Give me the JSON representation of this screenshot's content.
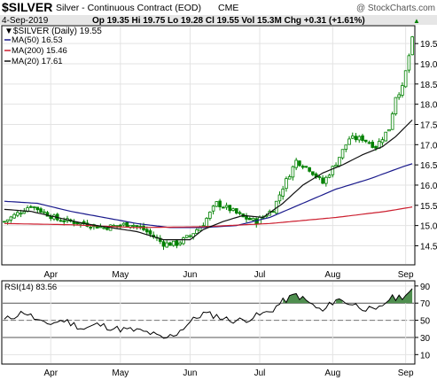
{
  "header": {
    "symbol": "$SILVER",
    "description": "Silver - Continuous Contract (EOD)",
    "exchange": "CME",
    "watermark": "@ StockCharts.com",
    "date": "4-Sep-2019",
    "quote_line": "Op 19.35  Hi 19.75  Lo 19.28  Cl 19.55  Vol 15.3M  Chg +0.31 (+1.61%)",
    "quote_arrow": "▲"
  },
  "legend": {
    "price": "▼$SILVER (Daily) 19.55",
    "ma50": "MA(50) 16.53",
    "ma200": "MA(200) 15.46",
    "ma20": "MA(20) 17.61"
  },
  "rsi_panel": {
    "label": "RSI(14) 83.56"
  },
  "colors": {
    "candle": "#008000",
    "ma50": "#1a1a8c",
    "ma200": "#cc1f2f",
    "ma20": "#111111",
    "rsi_fill_over": "#4f8f4f",
    "rsi_line": "#000000",
    "grid": "#e3e3e3",
    "border": "#000000",
    "header_bg": "#e6e6e6"
  },
  "chart_data": [
    {
      "type": "candlestick",
      "title": "$SILVER Silver - Continuous Contract (EOD) CME",
      "x_tick_labels": [
        "Apr",
        "May",
        "Jun",
        "Jul",
        "Aug",
        "Sep"
      ],
      "y_ticks": [
        14.5,
        15.0,
        15.5,
        16.0,
        16.5,
        17.0,
        17.5,
        18.0,
        18.5,
        19.0,
        19.5
      ],
      "y_tick_labels": [
        "14.5",
        "15.0",
        "15.5",
        "16.0",
        "16.5",
        "17.0",
        "17.5",
        "18.0",
        "18.5",
        "19.0",
        "19.5"
      ],
      "ylim": [
        14.05,
        19.92
      ],
      "close_path": [
        [
          0,
          15.1
        ],
        [
          8,
          15.5
        ],
        [
          16,
          15.15
        ],
        [
          24,
          15.05
        ],
        [
          30,
          14.95
        ],
        [
          38,
          15.05
        ],
        [
          42,
          14.9
        ],
        [
          48,
          14.55
        ],
        [
          52,
          14.55
        ],
        [
          56,
          14.75
        ],
        [
          60,
          15.05
        ],
        [
          64,
          15.55
        ],
        [
          68,
          15.4
        ],
        [
          72,
          15.2
        ],
        [
          76,
          15.1
        ],
        [
          81,
          15.4
        ],
        [
          84,
          15.95
        ],
        [
          88,
          16.6
        ],
        [
          92,
          16.4
        ],
        [
          96,
          16.05
        ],
        [
          100,
          16.55
        ],
        [
          104,
          17.15
        ],
        [
          108,
          17.15
        ],
        [
          112,
          16.95
        ],
        [
          116,
          17.4
        ],
        [
          118,
          18.2
        ],
        [
          120,
          18.4
        ],
        [
          123,
          19.6
        ]
      ],
      "series": [
        {
          "name": "MA(50)",
          "values": [
            [
              0,
              15.6
            ],
            [
              10,
              15.55
            ],
            [
              20,
              15.35
            ],
            [
              30,
              15.2
            ],
            [
              40,
              15.05
            ],
            [
              50,
              14.95
            ],
            [
              60,
              14.95
            ],
            [
              70,
              15.0
            ],
            [
              80,
              15.2
            ],
            [
              90,
              15.55
            ],
            [
              100,
              15.9
            ],
            [
              110,
              16.15
            ],
            [
              120,
              16.45
            ],
            [
              123,
              16.53
            ]
          ]
        },
        {
          "name": "MA(200)",
          "values": [
            [
              0,
              15.05
            ],
            [
              20,
              15.02
            ],
            [
              40,
              14.95
            ],
            [
              60,
              14.97
            ],
            [
              80,
              15.05
            ],
            [
              100,
              15.2
            ],
            [
              115,
              15.35
            ],
            [
              123,
              15.46
            ]
          ]
        },
        {
          "name": "MA(20)",
          "values": [
            [
              0,
              15.4
            ],
            [
              8,
              15.35
            ],
            [
              16,
              15.2
            ],
            [
              24,
              15.05
            ],
            [
              32,
              14.95
            ],
            [
              40,
              14.85
            ],
            [
              48,
              14.65
            ],
            [
              56,
              14.65
            ],
            [
              60,
              14.9
            ],
            [
              66,
              15.1
            ],
            [
              72,
              15.25
            ],
            [
              78,
              15.2
            ],
            [
              84,
              15.55
            ],
            [
              90,
              16.0
            ],
            [
              96,
              16.3
            ],
            [
              102,
              16.5
            ],
            [
              108,
              16.75
            ],
            [
              114,
              16.95
            ],
            [
              118,
              17.2
            ],
            [
              123,
              17.61
            ]
          ]
        }
      ]
    },
    {
      "type": "line",
      "title": "RSI(14)",
      "y_ticks": [
        10,
        30,
        50,
        70,
        90
      ],
      "y_tick_labels": [
        "10",
        "30",
        "50",
        "70",
        "90"
      ],
      "ylim": [
        0,
        95
      ],
      "x_tick_labels": [
        "Apr",
        "May",
        "Jun",
        "Jul",
        "Aug",
        "Sep"
      ],
      "overbought": 70,
      "oversold": 30,
      "values": [
        [
          0,
          50
        ],
        [
          6,
          60
        ],
        [
          12,
          45
        ],
        [
          18,
          50
        ],
        [
          24,
          40
        ],
        [
          28,
          45
        ],
        [
          34,
          40
        ],
        [
          40,
          38
        ],
        [
          44,
          35
        ],
        [
          48,
          28
        ],
        [
          52,
          35
        ],
        [
          56,
          48
        ],
        [
          60,
          58
        ],
        [
          64,
          55
        ],
        [
          68,
          50
        ],
        [
          72,
          50
        ],
        [
          76,
          55
        ],
        [
          80,
          60
        ],
        [
          84,
          72
        ],
        [
          88,
          80
        ],
        [
          92,
          70
        ],
        [
          96,
          60
        ],
        [
          100,
          75
        ],
        [
          104,
          70
        ],
        [
          108,
          65
        ],
        [
          112,
          60
        ],
        [
          116,
          75
        ],
        [
          120,
          78
        ],
        [
          123,
          83.5
        ]
      ]
    }
  ]
}
